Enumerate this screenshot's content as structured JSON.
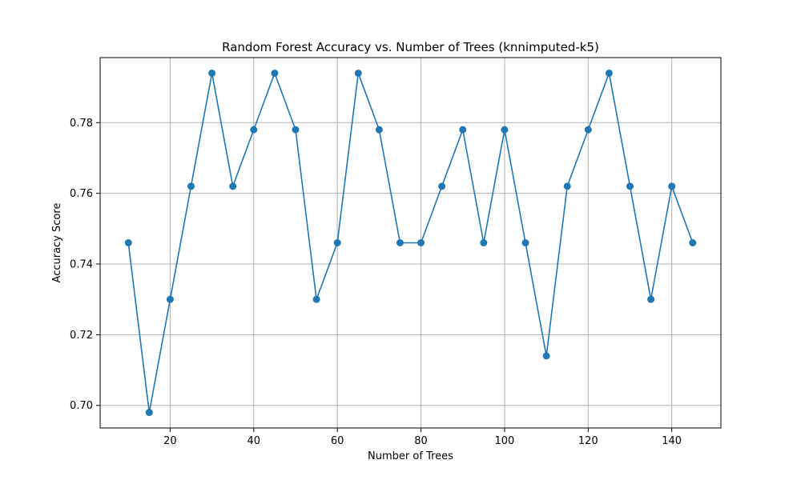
{
  "chart_data": {
    "type": "line",
    "title": "Random Forest Accuracy vs. Number of Trees (knnimputed-k5)",
    "xlabel": "Number of Trees",
    "ylabel": "Accuracy Score",
    "xlim": [
      3.25,
      151.75
    ],
    "ylim": [
      0.6936,
      0.7984
    ],
    "xticks": [
      20,
      40,
      60,
      80,
      100,
      120,
      140
    ],
    "yticks": [
      0.7,
      0.72,
      0.74,
      0.76,
      0.78
    ],
    "xtick_labels": [
      "20",
      "40",
      "60",
      "80",
      "100",
      "120",
      "140"
    ],
    "ytick_labels": [
      "0.70",
      "0.72",
      "0.74",
      "0.76",
      "0.78"
    ],
    "grid": true,
    "series": [
      {
        "color": "#1f77b4",
        "marker": "circle",
        "x": [
          10,
          15,
          20,
          25,
          30,
          35,
          40,
          45,
          50,
          55,
          60,
          65,
          70,
          75,
          80,
          85,
          90,
          95,
          100,
          105,
          110,
          115,
          120,
          125,
          130,
          135,
          140,
          145
        ],
        "y": [
          0.746,
          0.698,
          0.73,
          0.762,
          0.794,
          0.762,
          0.778,
          0.794,
          0.778,
          0.73,
          0.746,
          0.794,
          0.778,
          0.746,
          0.746,
          0.762,
          0.778,
          0.746,
          0.778,
          0.746,
          0.714,
          0.762,
          0.778,
          0.794,
          0.762,
          0.73,
          0.762,
          0.746
        ]
      }
    ]
  }
}
